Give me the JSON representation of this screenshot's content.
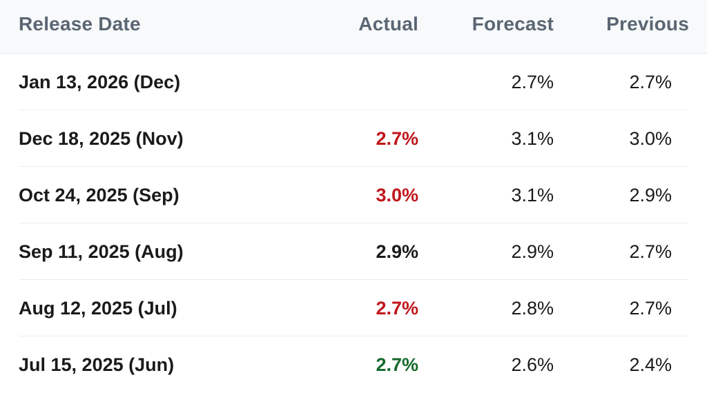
{
  "header": {
    "release_date": "Release Date",
    "actual": "Actual",
    "forecast": "Forecast",
    "previous": "Previous"
  },
  "colors": {
    "red": "#c0161b",
    "green": "#14692b",
    "neutral": "#1a1a1a"
  },
  "rows": [
    {
      "date": "Jan 13, 2026 (Dec)",
      "actual": "",
      "actual_color": "neutral",
      "forecast": "2.7%",
      "previous": "2.7%"
    },
    {
      "date": "Dec 18, 2025 (Nov)",
      "actual": "2.7%",
      "actual_color": "red",
      "forecast": "3.1%",
      "previous": "3.0%"
    },
    {
      "date": "Oct 24, 2025 (Sep)",
      "actual": "3.0%",
      "actual_color": "red",
      "forecast": "3.1%",
      "previous": "2.9%"
    },
    {
      "date": "Sep 11, 2025 (Aug)",
      "actual": "2.9%",
      "actual_color": "neutral",
      "forecast": "2.9%",
      "previous": "2.7%"
    },
    {
      "date": "Aug 12, 2025 (Jul)",
      "actual": "2.7%",
      "actual_color": "red",
      "forecast": "2.8%",
      "previous": "2.7%"
    },
    {
      "date": "Jul 15, 2025 (Jun)",
      "actual": "2.7%",
      "actual_color": "green",
      "forecast": "2.6%",
      "previous": "2.4%"
    }
  ]
}
